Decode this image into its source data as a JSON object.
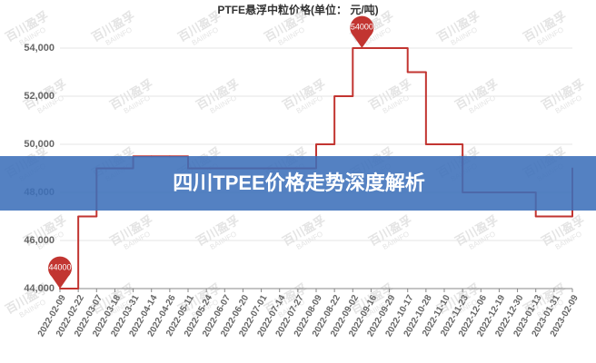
{
  "chart_data": {
    "type": "line",
    "title": "PTFE悬浮中粒价格(单位： 元/吨)",
    "step": true,
    "categories": [
      "2022-02-09",
      "2022-02-22",
      "2022-03-07",
      "2022-03-18",
      "2022-03-31",
      "2022-04-14",
      "2022-04-26",
      "2022-05-11",
      "2022-05-24",
      "2022-06-07",
      "2022-06-20",
      "2022-07-01",
      "2022-07-14",
      "2022-07-27",
      "2022-08-09",
      "2022-08-22",
      "2022-09-02",
      "2022-09-16",
      "2022-09-29",
      "2022-10-17",
      "2022-10-28",
      "2022-11-10",
      "2022-11-23",
      "2022-12-06",
      "2022-12-19",
      "2022-12-30",
      "2023-01-13",
      "2023-01-31",
      "2023-02-09"
    ],
    "values": [
      44000,
      47000,
      49000,
      49000,
      49500,
      49500,
      49500,
      49000,
      49000,
      49000,
      49000,
      49000,
      49000,
      49000,
      50000,
      52000,
      54000,
      54000,
      54000,
      53000,
      50000,
      50000,
      48000,
      48000,
      48000,
      48000,
      47000,
      47000,
      49000
    ],
    "color": "#c23531",
    "mark_points": [
      54000,
      44000
    ],
    "ylim": [
      44000,
      54000
    ],
    "yticks": [
      {
        "value": 44000,
        "label": "44,000"
      },
      {
        "value": 46000,
        "label": "46,000"
      },
      {
        "value": 48000,
        "label": "48,000"
      },
      {
        "value": 50000,
        "label": "50,000"
      },
      {
        "value": 52000,
        "label": "52,000"
      },
      {
        "value": 54000,
        "label": "54,000"
      }
    ],
    "grid": true,
    "watermark": "百川盈孚",
    "watermark_sub": "BAIINFO"
  },
  "banner": "四川TPEE价格走势深度解析"
}
